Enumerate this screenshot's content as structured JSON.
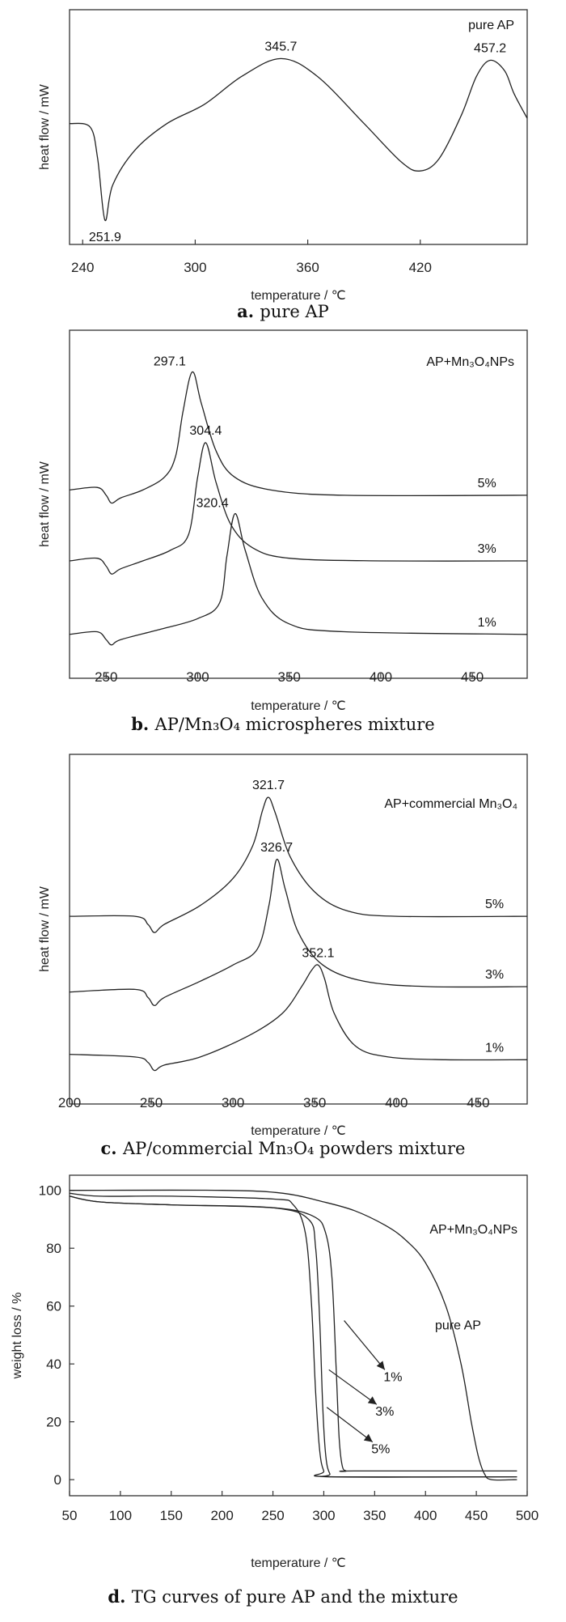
{
  "chart_data": [
    {
      "type": "line",
      "xlabel": "temperature / ℃",
      "ylabel": "heat flow / mW",
      "xlim": [
        233,
        477
      ],
      "x_ticks": [
        240,
        300,
        360,
        420
      ],
      "legend": "pure AP",
      "caption_letter": "a.",
      "caption_text": "pure AP",
      "series": [
        {
          "x": [
            233,
            244,
            248,
            251.9,
            256,
            268,
            285,
            305,
            325,
            345.7,
            365,
            390,
            410,
            420,
            430,
            442,
            450,
            457.2,
            465,
            470,
            477
          ],
          "y": [
            0.55,
            0.53,
            0.35,
            0.0,
            0.2,
            0.4,
            0.55,
            0.66,
            0.82,
            0.92,
            0.82,
            0.55,
            0.33,
            0.28,
            0.35,
            0.6,
            0.82,
            0.91,
            0.85,
            0.72,
            0.58
          ]
        }
      ],
      "annotations": [
        {
          "text": "251.9",
          "x": 251.9,
          "y": 0.0,
          "pos": "below"
        },
        {
          "text": "345.7",
          "x": 345.7,
          "y": 0.92,
          "pos": "above"
        },
        {
          "text": "457.2",
          "x": 457.2,
          "y": 0.91,
          "pos": "above"
        }
      ]
    },
    {
      "type": "line",
      "xlabel": "temperature / ℃",
      "ylabel": "heat flow / mW",
      "xlim": [
        230,
        480
      ],
      "x_ticks": [
        250,
        300,
        350,
        400,
        450
      ],
      "legend": "AP+Mn₃O₄NPs",
      "caption_letter": "b.",
      "caption_text": "AP/Mn₃O₄ microspheres mixture",
      "series": [
        {
          "name": "5%",
          "x": [
            230,
            245,
            250,
            253,
            258,
            270,
            282,
            288,
            292,
            297.1,
            302,
            310,
            320,
            340,
            380,
            480
          ],
          "y": [
            0.55,
            0.56,
            0.53,
            0.5,
            0.52,
            0.55,
            0.6,
            0.68,
            0.85,
            1.0,
            0.88,
            0.7,
            0.6,
            0.55,
            0.53,
            0.53
          ]
        },
        {
          "name": "3%",
          "x": [
            230,
            245,
            250,
            253,
            258,
            270,
            285,
            295,
            300,
            304.4,
            310,
            318,
            330,
            350,
            400,
            480
          ],
          "y": [
            0.28,
            0.29,
            0.26,
            0.23,
            0.25,
            0.28,
            0.32,
            0.38,
            0.6,
            0.73,
            0.58,
            0.42,
            0.33,
            0.29,
            0.28,
            0.28
          ]
        },
        {
          "name": "1%",
          "x": [
            230,
            245,
            250,
            253,
            258,
            280,
            300,
            312,
            316,
            320.4,
            326,
            335,
            350,
            380,
            480
          ],
          "y": [
            0.0,
            0.01,
            -0.02,
            -0.04,
            -0.02,
            0.02,
            0.06,
            0.12,
            0.3,
            0.46,
            0.32,
            0.14,
            0.04,
            0.01,
            0.0
          ]
        }
      ],
      "annotations": [
        {
          "text": "297.1",
          "x": 297.1,
          "y": 1.0,
          "pos": "above-left"
        },
        {
          "text": "304.4",
          "x": 304.4,
          "y": 0.73,
          "pos": "above"
        },
        {
          "text": "320.4",
          "x": 320.4,
          "y": 0.46,
          "pos": "above-left"
        },
        {
          "text": "5%",
          "x": 458,
          "y": 0.53,
          "pos": "above"
        },
        {
          "text": "3%",
          "x": 458,
          "y": 0.28,
          "pos": "above"
        },
        {
          "text": "1%",
          "x": 458,
          "y": 0.0,
          "pos": "above"
        }
      ]
    },
    {
      "type": "line",
      "xlabel": "temperature / ℃",
      "ylabel": "heat flow / mW",
      "xlim": [
        200,
        480
      ],
      "x_ticks": [
        200,
        250,
        300,
        350,
        400,
        450
      ],
      "legend": "AP+commercial Mn₃O₄",
      "caption_letter": "c.",
      "caption_text": "AP/commercial Mn₃O₄ powders mixture",
      "series": [
        {
          "name": "5%",
          "x": [
            200,
            240,
            248,
            252,
            258,
            280,
            300,
            312,
            318,
            321.7,
            326,
            335,
            350,
            370,
            400,
            480
          ],
          "y": [
            0.56,
            0.56,
            0.53,
            0.5,
            0.53,
            0.6,
            0.7,
            0.82,
            0.95,
            1.0,
            0.94,
            0.78,
            0.65,
            0.58,
            0.56,
            0.56
          ]
        },
        {
          "name": "3%",
          "x": [
            200,
            240,
            248,
            252,
            258,
            280,
            300,
            315,
            322,
            326.7,
            332,
            340,
            355,
            380,
            420,
            480
          ],
          "y": [
            0.28,
            0.29,
            0.26,
            0.23,
            0.26,
            0.32,
            0.38,
            0.44,
            0.6,
            0.77,
            0.66,
            0.5,
            0.38,
            0.32,
            0.3,
            0.3
          ]
        },
        {
          "name": "1%",
          "x": [
            200,
            240,
            248,
            252,
            258,
            280,
            310,
            330,
            342,
            348,
            352.1,
            356,
            362,
            375,
            395,
            430,
            480
          ],
          "y": [
            0.05,
            0.04,
            0.02,
            -0.01,
            0.01,
            0.04,
            0.12,
            0.2,
            0.3,
            0.36,
            0.38,
            0.33,
            0.2,
            0.08,
            0.04,
            0.03,
            0.03
          ]
        }
      ],
      "annotations": [
        {
          "text": "321.7",
          "x": 321.7,
          "y": 1.0,
          "pos": "above"
        },
        {
          "text": "326.7",
          "x": 326.7,
          "y": 0.77,
          "pos": "above"
        },
        {
          "text": "352.1",
          "x": 352.1,
          "y": 0.38,
          "pos": "above"
        },
        {
          "text": "5%",
          "x": 460,
          "y": 0.56,
          "pos": "above"
        },
        {
          "text": "3%",
          "x": 460,
          "y": 0.3,
          "pos": "above"
        },
        {
          "text": "1%",
          "x": 460,
          "y": 0.03,
          "pos": "above"
        }
      ]
    },
    {
      "type": "line",
      "xlabel": "temperature / ℃",
      "ylabel": "weight loss / %",
      "xlim": [
        50,
        500
      ],
      "ylim": [
        -5,
        103
      ],
      "x_ticks": [
        50,
        100,
        150,
        200,
        250,
        300,
        350,
        400,
        450,
        500
      ],
      "y_ticks": [
        0,
        20,
        40,
        60,
        80,
        100
      ],
      "legend": "AP+Mn₃O₄NPs",
      "caption_letter": "d.",
      "caption_text": "TG curves of pure AP and the mixture",
      "series": [
        {
          "name": "pure AP",
          "x": [
            50,
            200,
            260,
            300,
            330,
            360,
            380,
            400,
            420,
            435,
            445,
            452,
            458,
            465,
            490
          ],
          "y": [
            100,
            100,
            99,
            96,
            93,
            88,
            83,
            75,
            60,
            40,
            20,
            8,
            2,
            0,
            0
          ]
        },
        {
          "name": "1%",
          "x": [
            50,
            80,
            150,
            250,
            290,
            302,
            308,
            312,
            315,
            318,
            322,
            330,
            490
          ],
          "y": [
            98,
            96,
            95,
            94,
            91,
            85,
            70,
            40,
            15,
            5,
            3,
            3,
            3
          ]
        },
        {
          "name": "3%",
          "x": [
            50,
            80,
            150,
            250,
            285,
            292,
            296,
            299,
            302,
            306,
            312,
            490
          ],
          "y": [
            98,
            96,
            95,
            94,
            90,
            80,
            55,
            25,
            8,
            2,
            1,
            1
          ]
        },
        {
          "name": "5%",
          "x": [
            50,
            80,
            150,
            250,
            270,
            282,
            288,
            292,
            296,
            300,
            306,
            490
          ],
          "y": [
            99,
            98,
            98,
            97,
            95,
            85,
            60,
            30,
            10,
            3,
            1,
            1
          ]
        }
      ],
      "arrows": [
        {
          "label": "1%",
          "from": [
            320,
            55
          ],
          "to": [
            360,
            38
          ]
        },
        {
          "label": "3%",
          "from": [
            305,
            38
          ],
          "to": [
            352,
            26
          ]
        },
        {
          "label": "5%",
          "from": [
            303,
            25
          ],
          "to": [
            348,
            13
          ]
        }
      ],
      "annotations": [
        {
          "text": "pure AP",
          "x": 432,
          "y": 52,
          "pos": "left"
        }
      ]
    }
  ]
}
